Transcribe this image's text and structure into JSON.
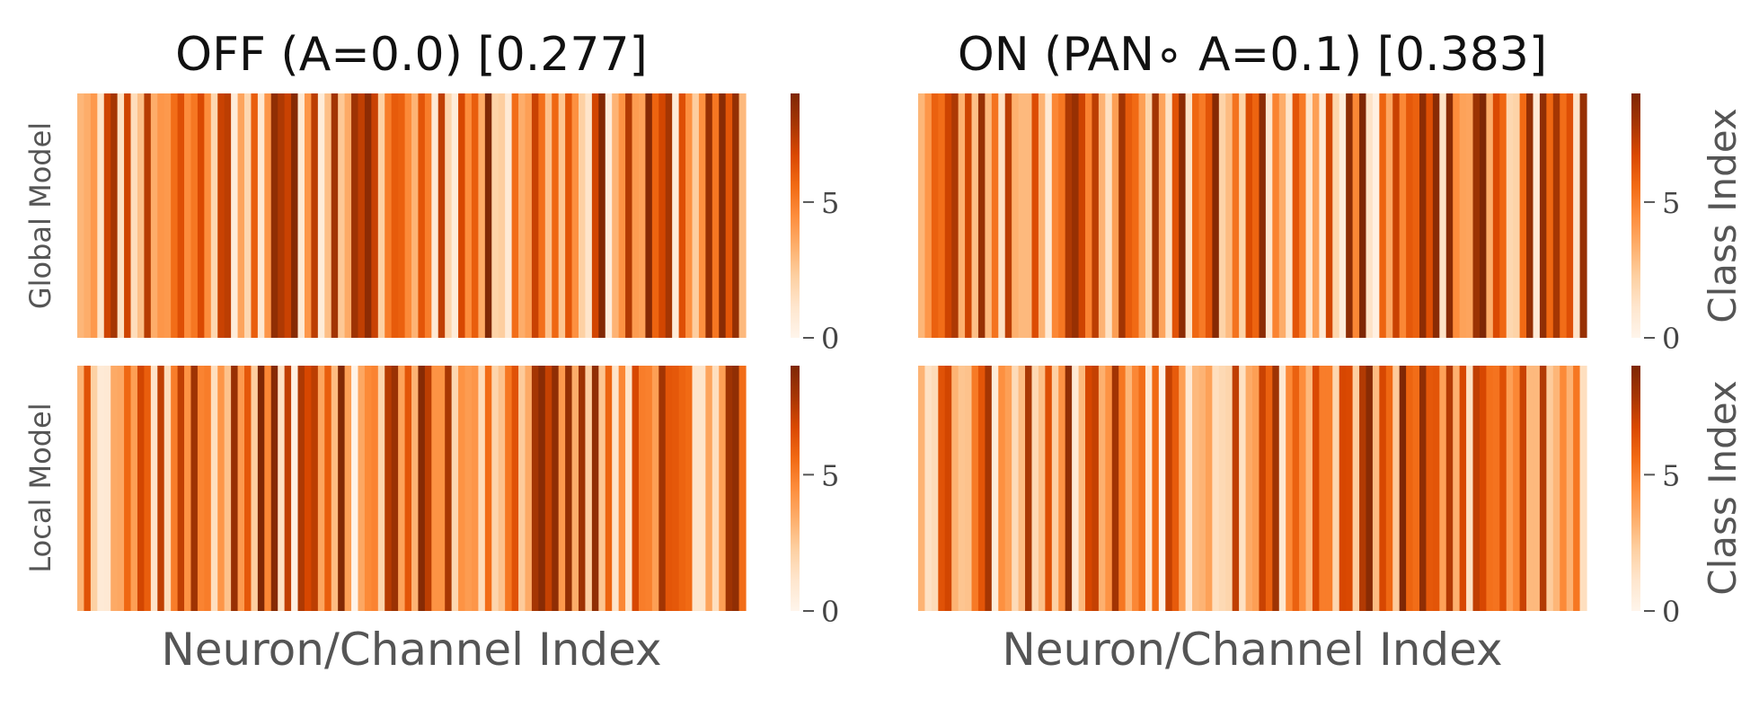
{
  "figure": {
    "colormap": {
      "name": "Oranges",
      "stops": [
        "#fff5eb",
        "#fee6ce",
        "#fdd0a2",
        "#fdae6b",
        "#fd8d3c",
        "#f16913",
        "#d94801",
        "#a63603",
        "#7f2704"
      ]
    }
  },
  "chart_data": [
    {
      "type": "heatmap",
      "title": "OFF (A=0.0) [0.277]",
      "ylabel": "Global Model",
      "xlabel": "",
      "colorbar": {
        "range": [
          0,
          9
        ],
        "ticks": [
          0,
          5
        ],
        "label": ""
      },
      "n_columns": 100,
      "seed": 11,
      "column_values": []
    },
    {
      "type": "heatmap",
      "title": "ON (PAN∘ A=0.1) [0.383]",
      "ylabel": "",
      "xlabel": "",
      "colorbar": {
        "range": [
          0,
          9
        ],
        "ticks": [
          0,
          5
        ],
        "label": "Class Index"
      },
      "n_columns": 100,
      "seed": 23,
      "column_values": []
    },
    {
      "type": "heatmap",
      "title": "",
      "ylabel": "Local Model",
      "xlabel": "Neuron/Channel Index",
      "colorbar": {
        "range": [
          0,
          9
        ],
        "ticks": [
          0,
          5
        ],
        "label": ""
      },
      "n_columns": 100,
      "seed": 37,
      "column_values": []
    },
    {
      "type": "heatmap",
      "title": "",
      "ylabel": "",
      "xlabel": "Neuron/Channel Index",
      "colorbar": {
        "range": [
          0,
          9
        ],
        "ticks": [
          0,
          5
        ],
        "label": "Class Index"
      },
      "n_columns": 100,
      "seed": 53,
      "column_values": []
    }
  ]
}
